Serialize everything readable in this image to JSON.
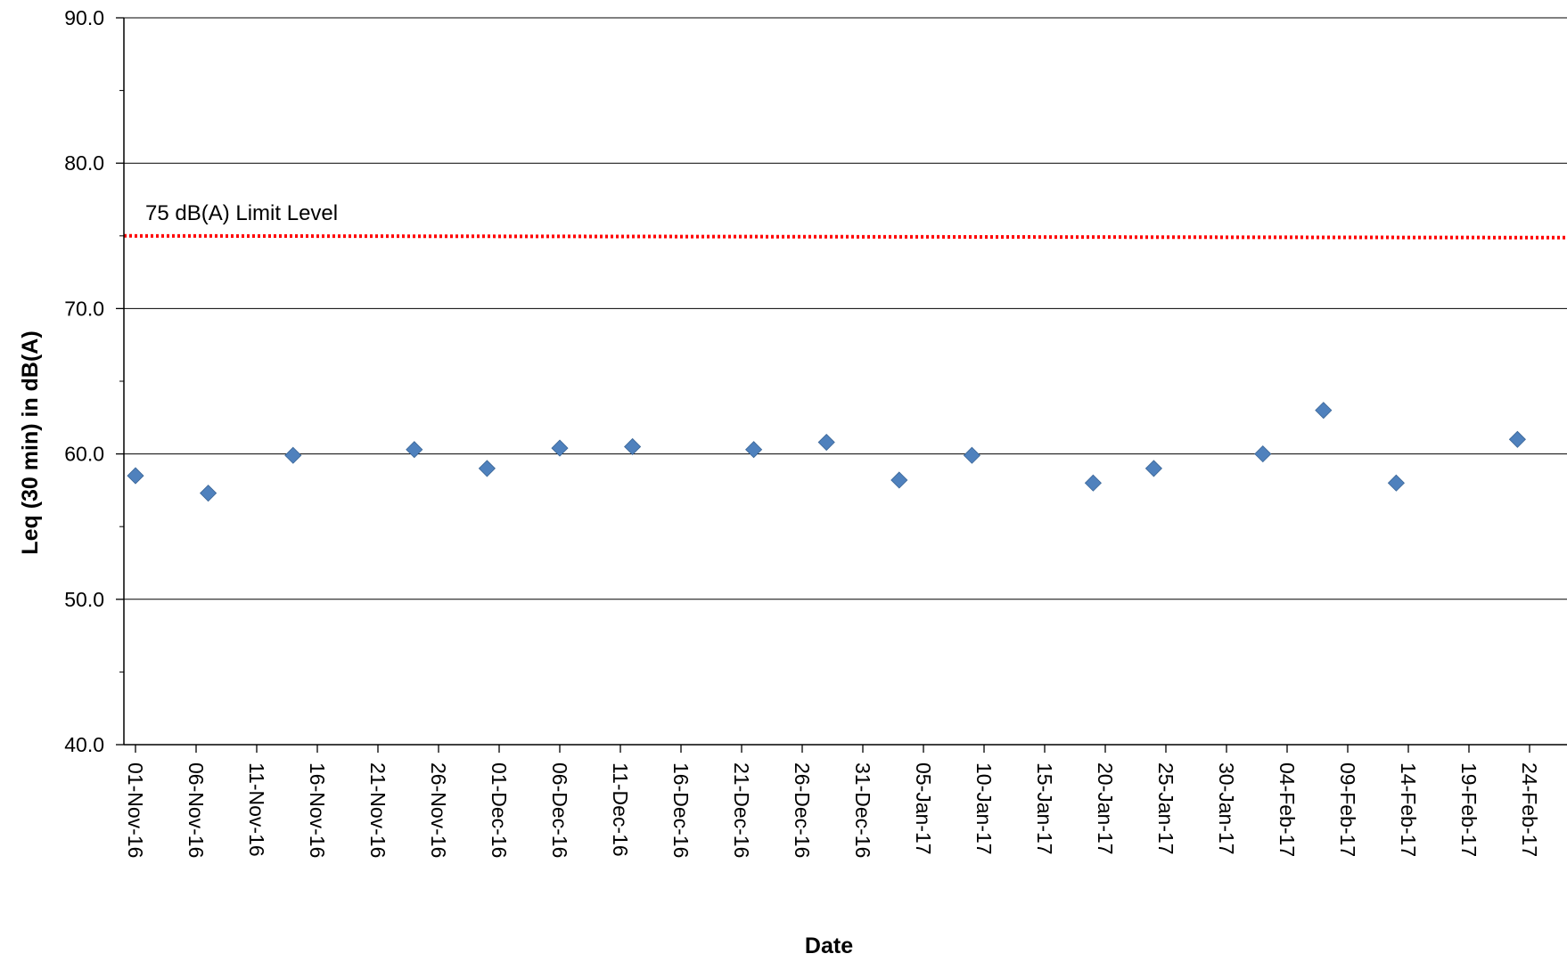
{
  "chart_data": {
    "type": "scatter",
    "title": "",
    "xlabel": "Date",
    "ylabel": "Leq (30 min) in dB(A)",
    "ylim": [
      40,
      90
    ],
    "yticks": [
      "40.0",
      "50.0",
      "60.0",
      "70.0",
      "80.0",
      "90.0"
    ],
    "grid": true,
    "date_range": [
      "2016-11-01",
      "2017-02-28"
    ],
    "x_tick_labels": [
      "01-Nov-16",
      "06-Nov-16",
      "11-Nov-16",
      "16-Nov-16",
      "21-Nov-16",
      "26-Nov-16",
      "01-Dec-16",
      "06-Dec-16",
      "11-Dec-16",
      "16-Dec-16",
      "21-Dec-16",
      "26-Dec-16",
      "31-Dec-16",
      "05-Jan-17",
      "10-Jan-17",
      "15-Jan-17",
      "20-Jan-17",
      "25-Jan-17",
      "30-Jan-17",
      "04-Feb-17",
      "09-Feb-17",
      "14-Feb-17",
      "19-Feb-17",
      "24-Feb-17"
    ],
    "x_tick_dates": [
      "2016-11-01",
      "2016-11-06",
      "2016-11-11",
      "2016-11-16",
      "2016-11-21",
      "2016-11-26",
      "2016-12-01",
      "2016-12-06",
      "2016-12-11",
      "2016-12-16",
      "2016-12-21",
      "2016-12-26",
      "2016-12-31",
      "2017-01-05",
      "2017-01-10",
      "2017-01-15",
      "2017-01-20",
      "2017-01-25",
      "2017-01-30",
      "2017-02-04",
      "2017-02-09",
      "2017-02-14",
      "2017-02-19",
      "2017-02-24"
    ],
    "series": [
      {
        "color": "#4F81BD",
        "marker": "diamond",
        "points": [
          {
            "x": "2016-11-01",
            "y": 58.5
          },
          {
            "x": "2016-11-07",
            "y": 57.3
          },
          {
            "x": "2016-11-14",
            "y": 59.9
          },
          {
            "x": "2016-11-24",
            "y": 60.3
          },
          {
            "x": "2016-11-30",
            "y": 59.0
          },
          {
            "x": "2016-12-06",
            "y": 60.4
          },
          {
            "x": "2016-12-12",
            "y": 60.5
          },
          {
            "x": "2016-12-22",
            "y": 60.3
          },
          {
            "x": "2016-12-28",
            "y": 60.8
          },
          {
            "x": "2017-01-03",
            "y": 58.2
          },
          {
            "x": "2017-01-09",
            "y": 59.9
          },
          {
            "x": "2017-01-19",
            "y": 58.0
          },
          {
            "x": "2017-01-24",
            "y": 59.0
          },
          {
            "x": "2017-02-02",
            "y": 60.0
          },
          {
            "x": "2017-02-07",
            "y": 63.0
          },
          {
            "x": "2017-02-13",
            "y": 58.0
          },
          {
            "x": "2017-02-23",
            "y": 61.0
          }
        ]
      }
    ],
    "limit_line": {
      "y": 75,
      "label": "75 dB(A) Limit Level",
      "color": "#FF0000",
      "style": "dotted"
    }
  }
}
